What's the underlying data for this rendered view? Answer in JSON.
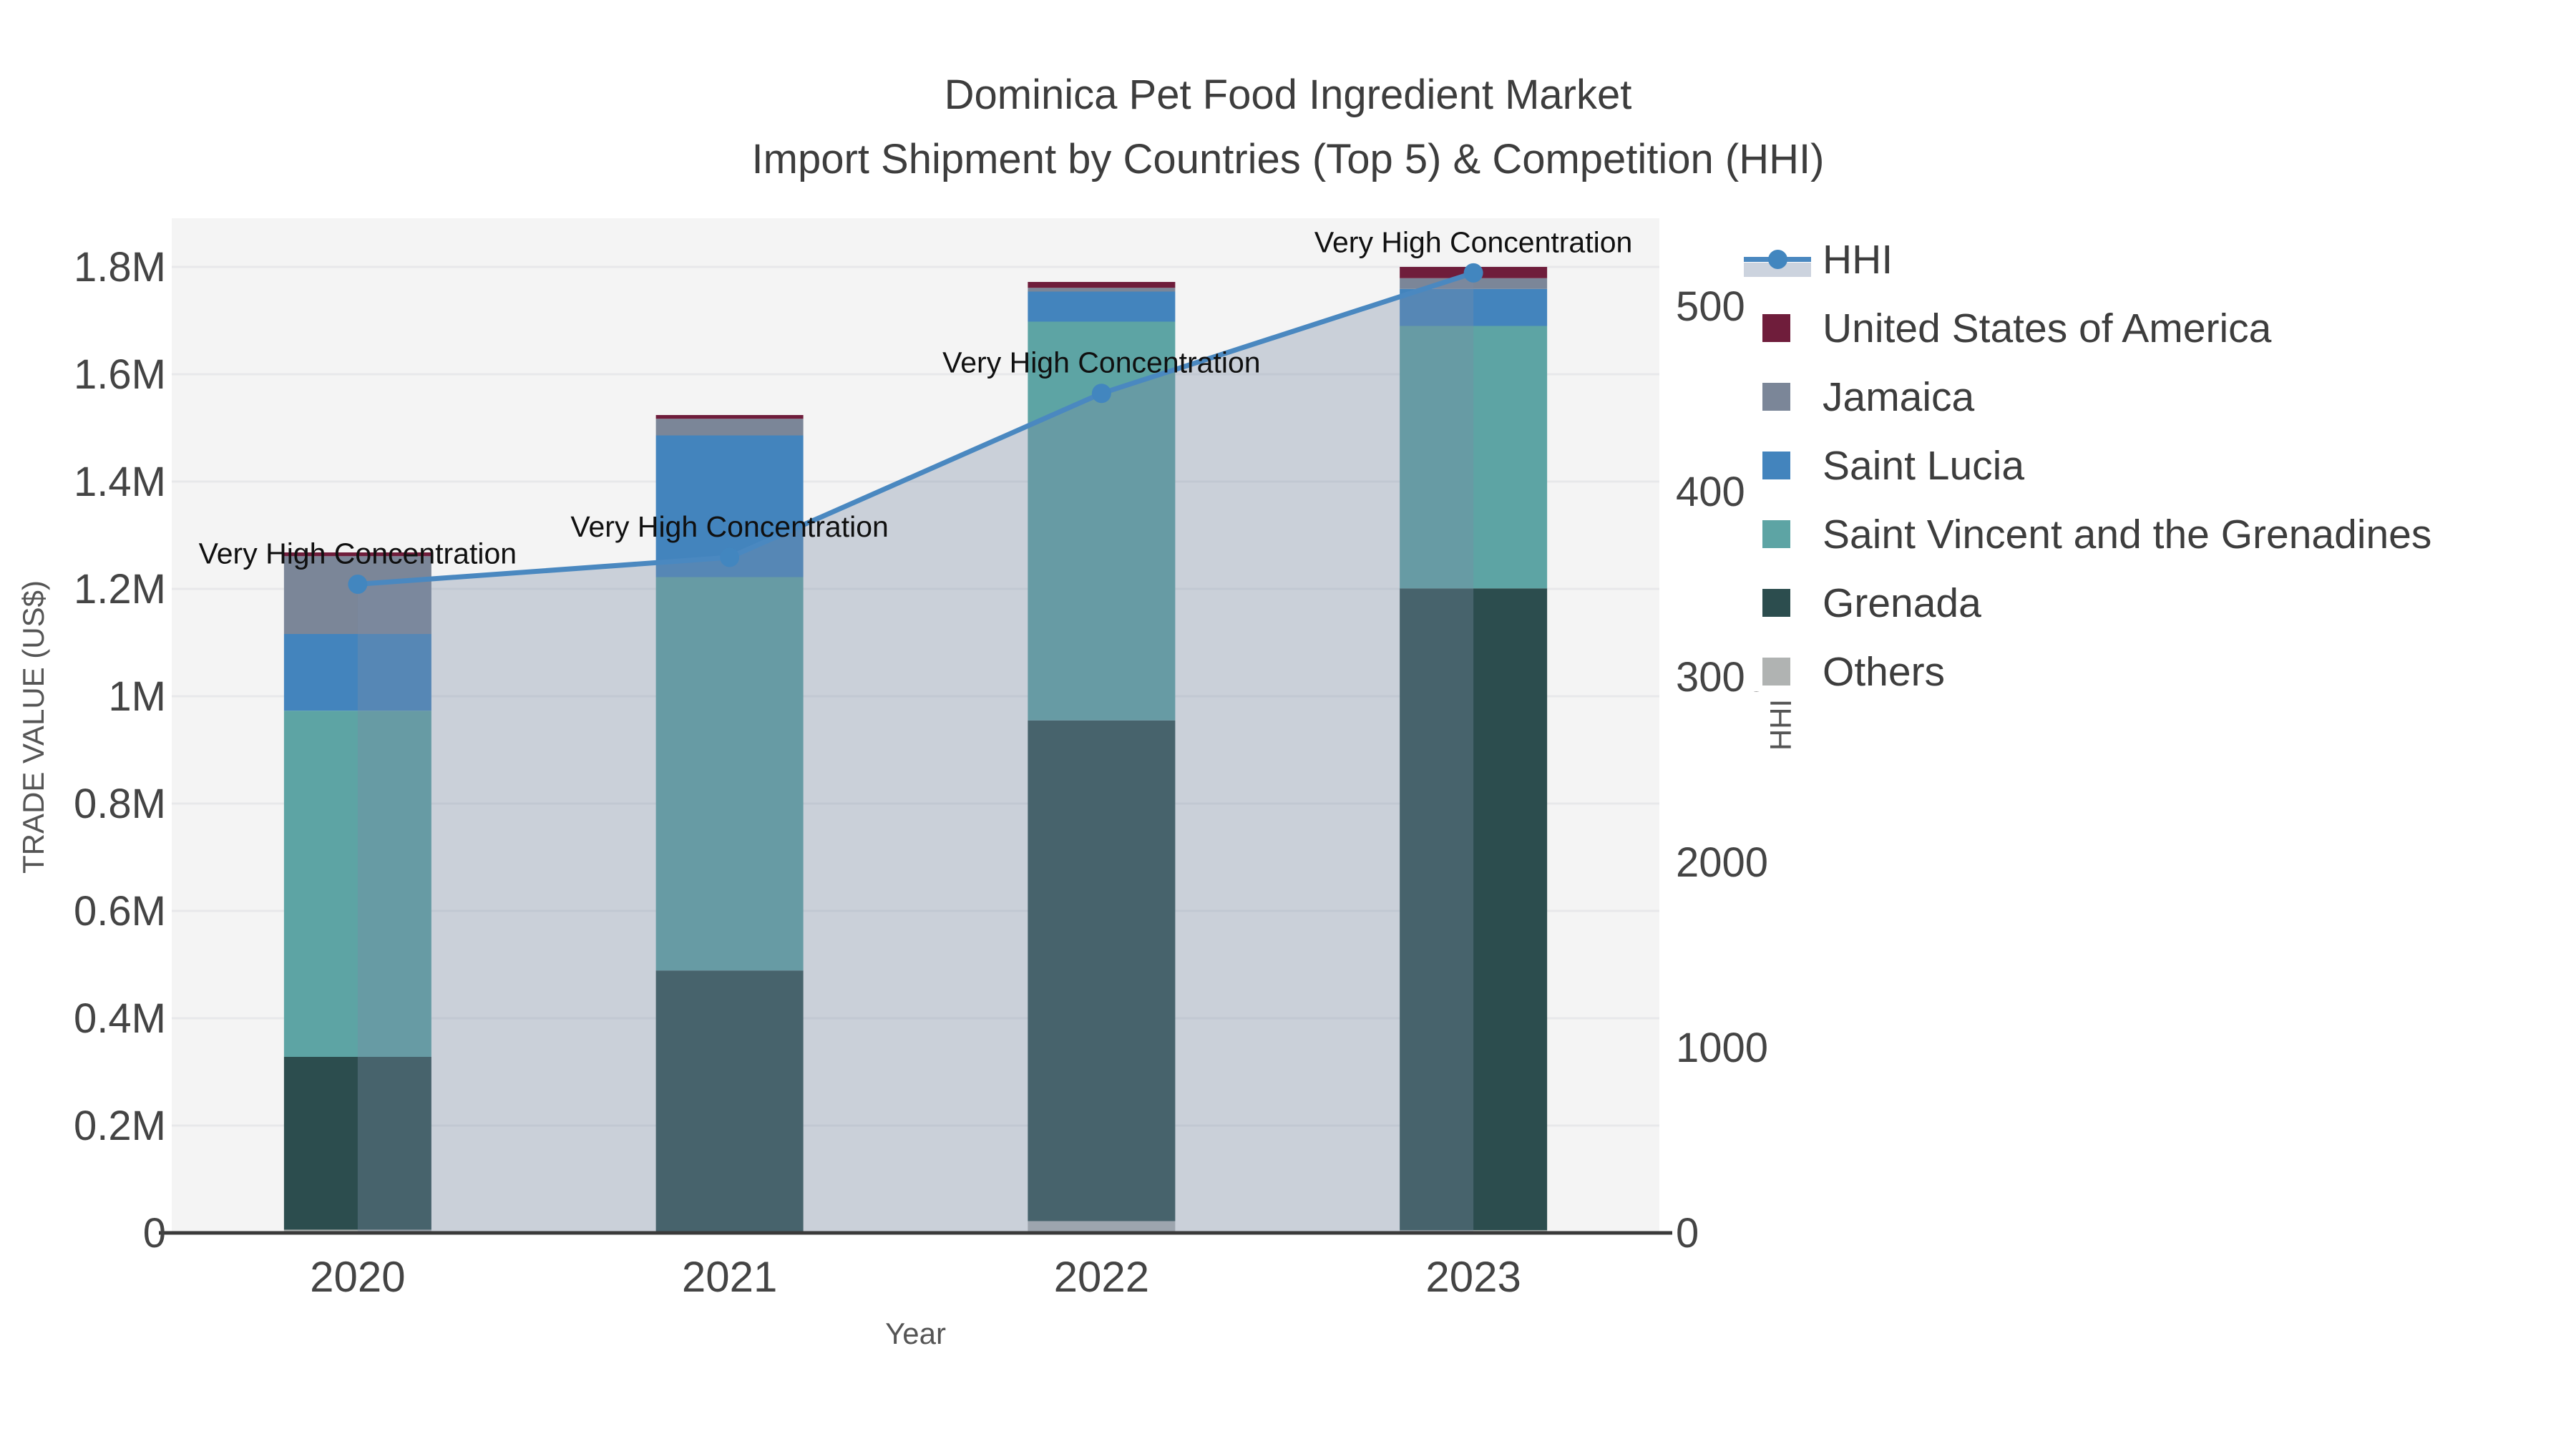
{
  "title": {
    "line1": "Dominica Pet Food Ingredient Market",
    "line2": "Import Shipment by Countries (Top 5) & Competition (HHI)"
  },
  "axes": {
    "x": {
      "title": "Year",
      "ticks": [
        "2020",
        "2021",
        "2022",
        "2023"
      ]
    },
    "y_left": {
      "title": "TRADE VALUE (US$)",
      "ticks": [
        "0",
        "0.2M",
        "0.4M",
        "0.6M",
        "0.8M",
        "1M",
        "1.2M",
        "1.4M",
        "1.6M",
        "1.8M"
      ],
      "tick_values_M": [
        0,
        0.2,
        0.4,
        0.6,
        0.8,
        1.0,
        1.2,
        1.4,
        1.6,
        1.8
      ]
    },
    "y_right": {
      "title": "HHI",
      "ticks": [
        "0",
        "1000",
        "2000",
        "3000",
        "4000",
        "5000"
      ],
      "tick_values": [
        0,
        1000,
        2000,
        3000,
        4000,
        5000
      ]
    }
  },
  "annotation_text": "Very High Concentration",
  "legend": {
    "items": [
      {
        "label": "HHI",
        "type": "line",
        "color": "#4a88c0",
        "band": "#ccd3de",
        "dot": "#4286bf"
      },
      {
        "label": "United States of America",
        "type": "swatch",
        "color": "#6f1d3b"
      },
      {
        "label": "Jamaica",
        "type": "swatch",
        "color": "#7b8698"
      },
      {
        "label": "Saint Lucia",
        "type": "swatch",
        "color": "#4384bd"
      },
      {
        "label": "Saint Vincent and the Grenadines",
        "type": "swatch",
        "color": "#5da4a4"
      },
      {
        "label": "Grenada",
        "type": "swatch",
        "color": "#2c4d4e"
      },
      {
        "label": "Others",
        "type": "swatch",
        "color": "#b0b3b2"
      }
    ]
  },
  "colors": {
    "figure_bg": "#ffffff",
    "plot_bg": "#f4f4f4",
    "gridline": "#e7e8ea",
    "axis_line": "#3a3a3a",
    "tick_label": "#444444",
    "axis_title": "#555555",
    "title_text": "#3d3d3d",
    "annotation_text": "#101010",
    "hhi_line": "#4a88c0",
    "hhi_marker": "#4286bf",
    "hhi_area_fill": "#7c8ba5"
  },
  "chart_data": {
    "type": "stacked-bar+line",
    "categories": [
      "2020",
      "2021",
      "2022",
      "2023"
    ],
    "value_unit": "million US$",
    "series": [
      {
        "name": "Others",
        "color": "#b0b3b2",
        "values": [
          0.006,
          0.0,
          0.022,
          0.005
        ]
      },
      {
        "name": "Grenada",
        "color": "#2c4d4e",
        "values": [
          0.322,
          0.489,
          0.933,
          1.196
        ]
      },
      {
        "name": "Saint Vincent and the Grenadines",
        "color": "#5da4a4",
        "values": [
          0.645,
          0.733,
          0.743,
          0.489
        ]
      },
      {
        "name": "Saint Lucia",
        "color": "#4384bd",
        "values": [
          0.143,
          0.264,
          0.056,
          0.069
        ]
      },
      {
        "name": "Jamaica",
        "color": "#7b8698",
        "values": [
          0.145,
          0.031,
          0.007,
          0.02
        ]
      },
      {
        "name": "United States of America",
        "color": "#6f1d3b",
        "values": [
          0.007,
          0.007,
          0.011,
          0.021
        ]
      }
    ],
    "bar_totals_M": [
      1.268,
      1.524,
      1.772,
      1.8
    ],
    "line_series": {
      "name": "HHI",
      "values": [
        3500,
        3645,
        4530,
        5180
      ],
      "area_opacity": 0.35
    },
    "annotations": [
      "Very High Concentration",
      "Very High Concentration",
      "Very High Concentration",
      "Very High Concentration"
    ],
    "xlabel": "Year",
    "ylabel_left": "TRADE VALUE (US$)",
    "ylabel_right": "HHI",
    "ylim_left_M": [
      0,
      1.89
    ],
    "ylim_right": [
      0,
      5475
    ],
    "grid": true,
    "legend_position": "right-top-outside"
  }
}
